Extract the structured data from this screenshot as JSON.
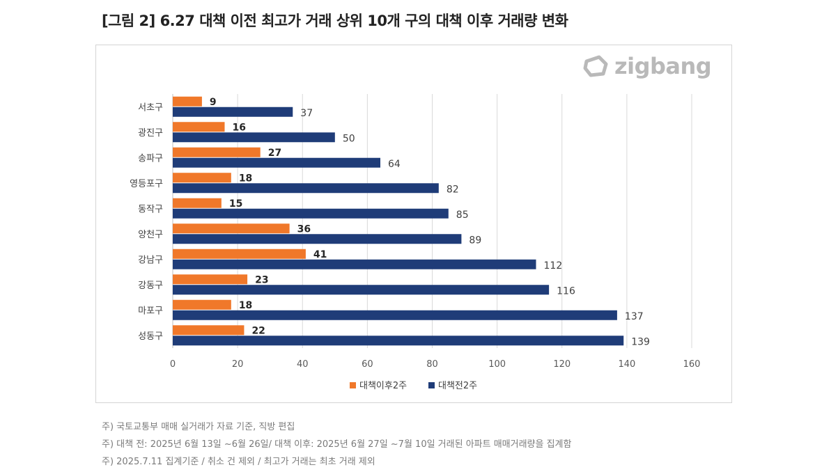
{
  "title": "[그림 2] 6.27 대책 이전 최고가 거래 상위 10개 구의 대책 이후 거래량 변화",
  "logo": {
    "text": "zigbang",
    "icon": "zigbang-logo-icon"
  },
  "chart_data": {
    "type": "bar",
    "orientation": "horizontal",
    "categories": [
      "서초구",
      "광진구",
      "송파구",
      "영등포구",
      "동작구",
      "양천구",
      "강남구",
      "강동구",
      "마포구",
      "성동구"
    ],
    "series": [
      {
        "name": "대책이후2주",
        "color": "#f0782a",
        "values": [
          9,
          16,
          27,
          18,
          15,
          36,
          41,
          23,
          18,
          22
        ]
      },
      {
        "name": "대책전2주",
        "color": "#1f3c78",
        "values": [
          37,
          50,
          64,
          82,
          85,
          89,
          112,
          116,
          137,
          139
        ]
      }
    ],
    "xlim": [
      0,
      160
    ],
    "xticks": [
      "0",
      "20",
      "40",
      "60",
      "80",
      "100",
      "120",
      "140",
      "160"
    ],
    "grid": true,
    "legend": "bottom"
  },
  "notes": [
    "주) 국토교통부 매매 실거래가 자료 기준, 직방 편집",
    "주) 대책 전: 2025년 6월 13일 ~6월 26일/ 대책 이후: 2025년 6월 27일 ~7월 10일 거래된 아파트 매매거래량을 집계함",
    "주) 2025.7.11 집계기준 / 취소 건 제외  / 최고가 거래는 최초 거래 제외"
  ]
}
